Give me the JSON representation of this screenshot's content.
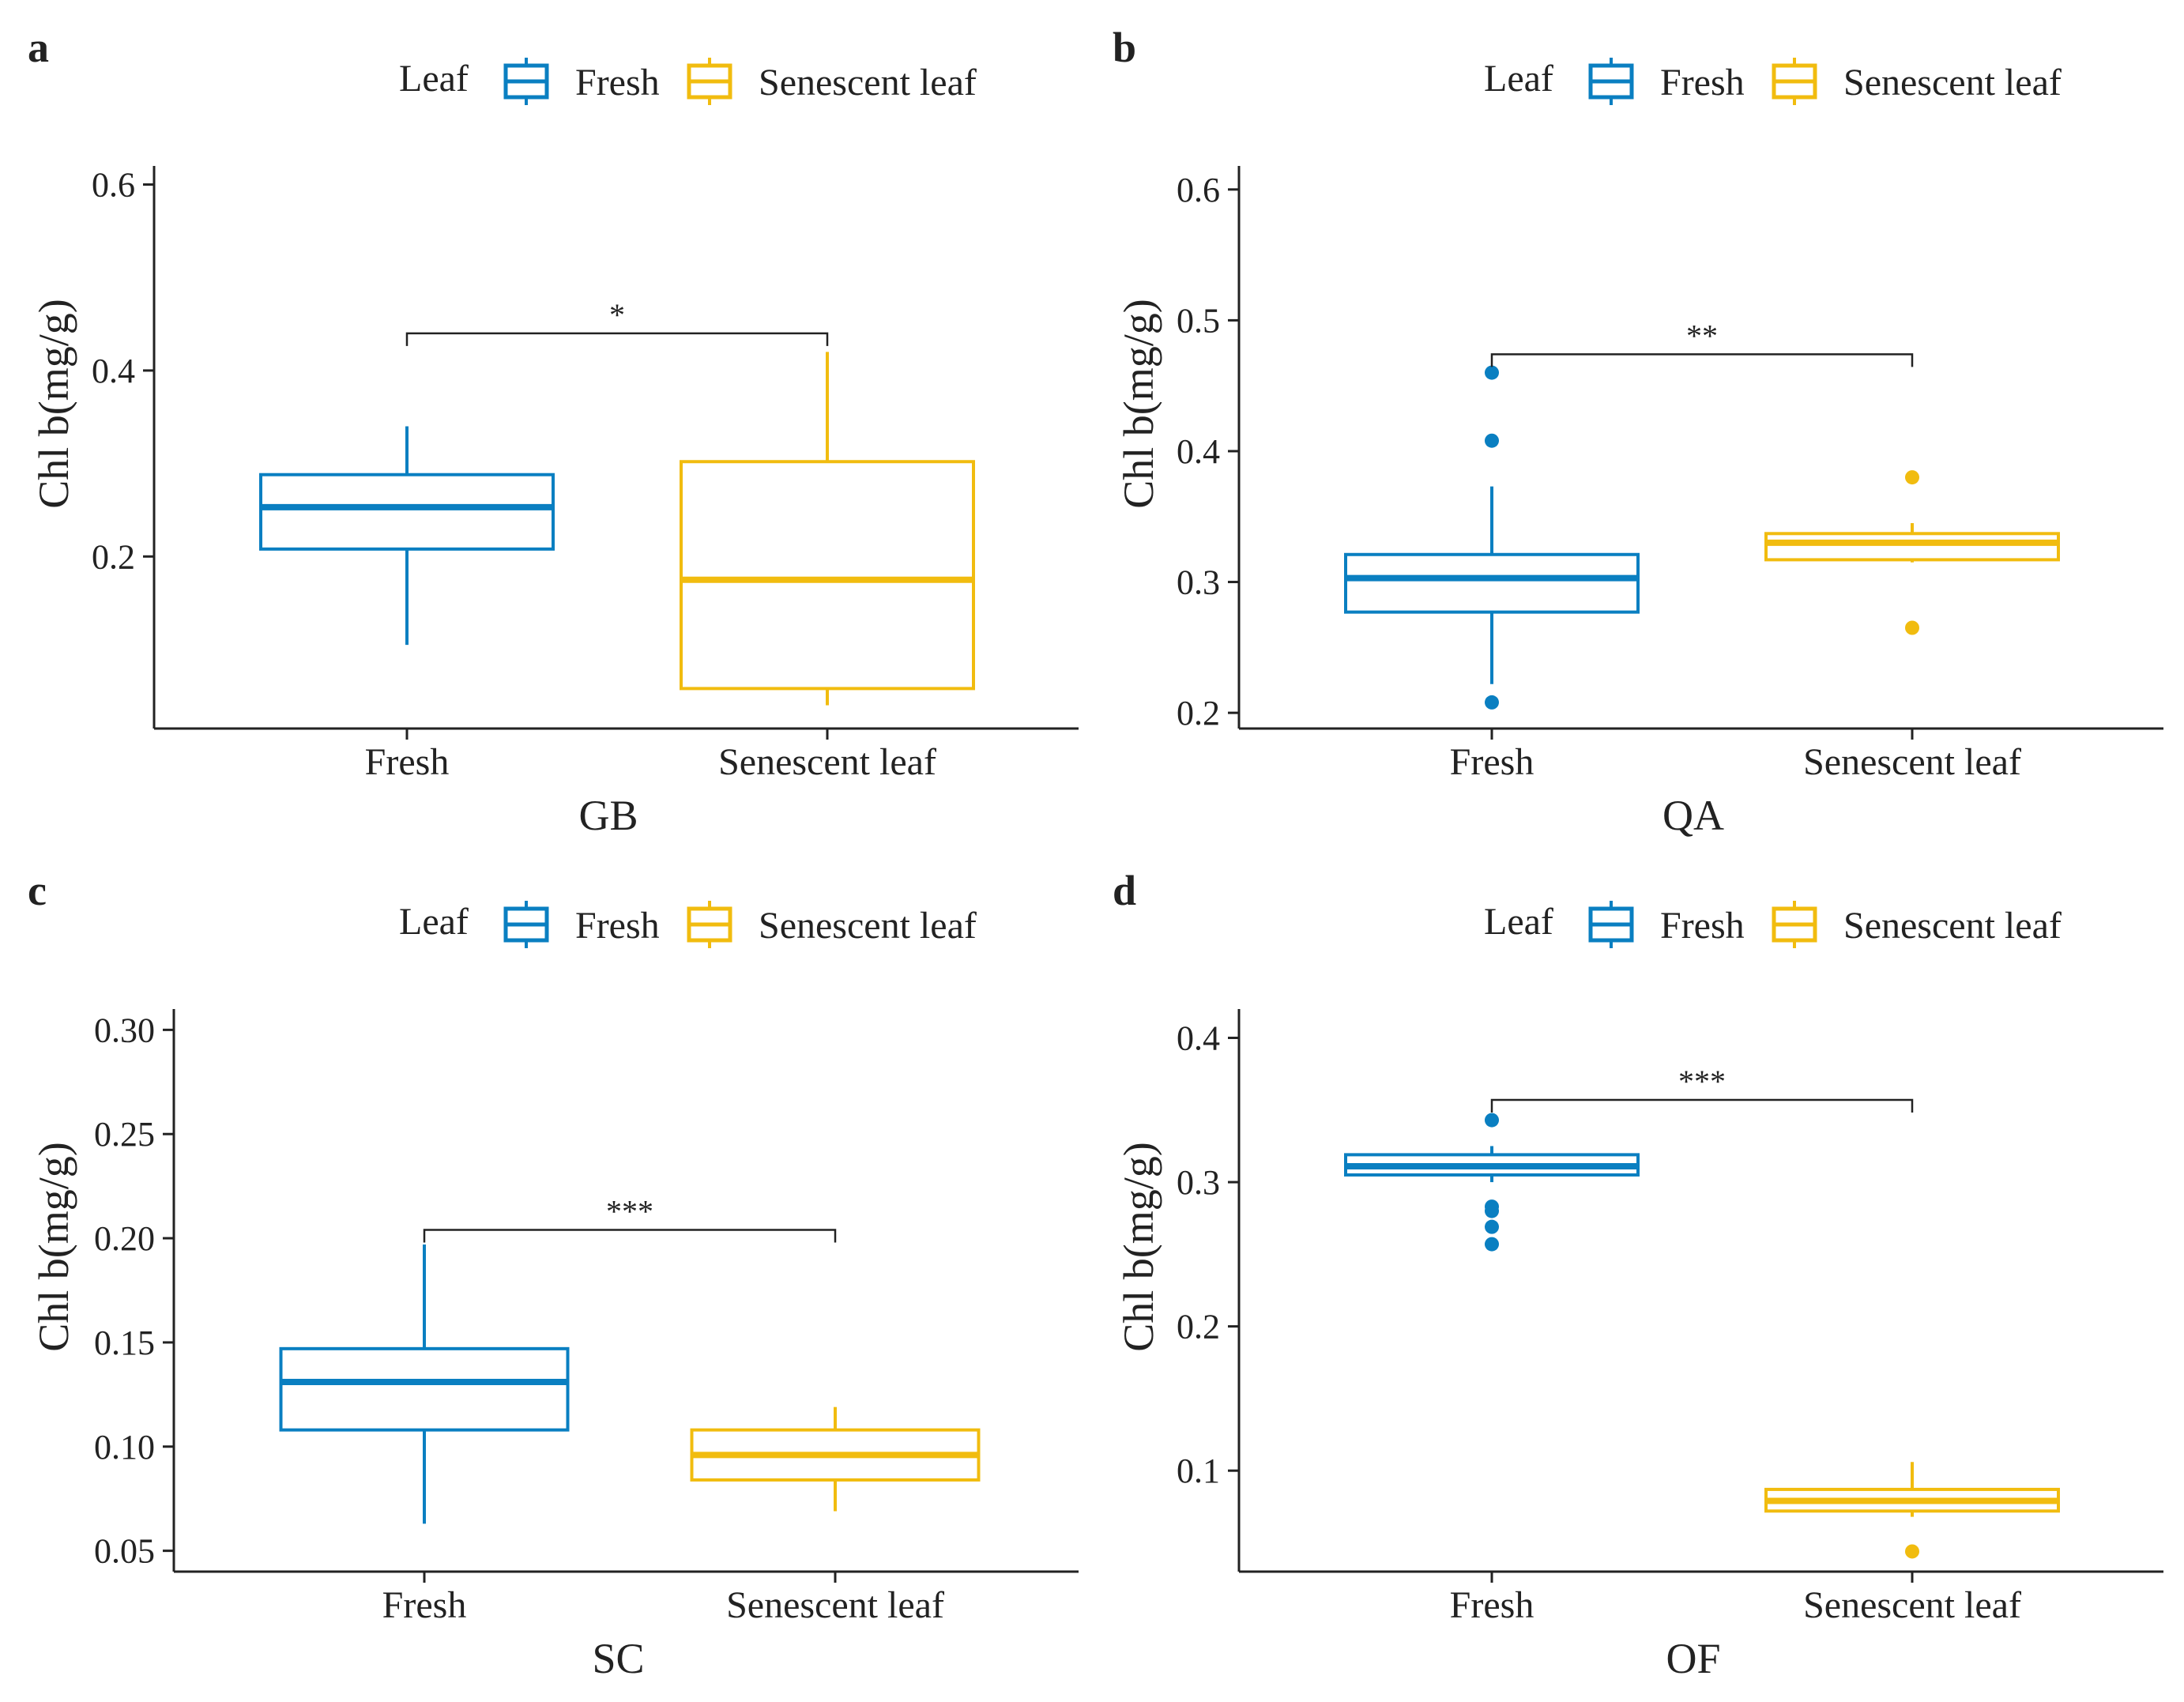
{
  "colors": {
    "fresh": "#0a7fc1",
    "senescent": "#f1bc0f",
    "axis": "#222222"
  },
  "chart_data": [
    {
      "panel": "a",
      "type": "box",
      "xlabel": "GB",
      "ylabel": "Chl b(mg/g)",
      "ylim": [
        0.015,
        0.62
      ],
      "yticks": [
        0.2,
        0.4,
        0.6
      ],
      "ytick_labels": [
        "0.2",
        "0.4",
        "0.6"
      ],
      "categories": [
        "Fresh",
        "Senescent leaf"
      ],
      "legend": {
        "title": "Leaf",
        "entries": [
          "Fresh",
          "Senescent leaf"
        ]
      },
      "significance": {
        "label": "*",
        "y": 0.44
      },
      "boxes": [
        {
          "name": "Fresh",
          "color_key": "fresh",
          "lower_whisker": 0.105,
          "q1": 0.208,
          "median": 0.253,
          "q3": 0.288,
          "upper_whisker": 0.34,
          "outliers": []
        },
        {
          "name": "Senescent leaf",
          "color_key": "senescent",
          "lower_whisker": 0.04,
          "q1": 0.058,
          "median": 0.175,
          "q3": 0.302,
          "upper_whisker": 0.42,
          "outliers": []
        }
      ]
    },
    {
      "panel": "b",
      "type": "box",
      "xlabel": "QA",
      "ylabel": "Chl b(mg/g)",
      "ylim": [
        0.188,
        0.618
      ],
      "yticks": [
        0.2,
        0.3,
        0.4,
        0.5,
        0.6
      ],
      "ytick_labels": [
        "0.2",
        "0.3",
        "0.4",
        "0.5",
        "0.6"
      ],
      "categories": [
        "Fresh",
        "Senescent leaf"
      ],
      "legend": {
        "title": "Leaf",
        "entries": [
          "Fresh",
          "Senescent leaf"
        ]
      },
      "significance": {
        "label": "**",
        "y": 0.474
      },
      "boxes": [
        {
          "name": "Fresh",
          "color_key": "fresh",
          "lower_whisker": 0.222,
          "q1": 0.277,
          "median": 0.303,
          "q3": 0.321,
          "upper_whisker": 0.373,
          "outliers": [
            0.208,
            0.408,
            0.46
          ]
        },
        {
          "name": "Senescent leaf",
          "color_key": "senescent",
          "lower_whisker": 0.315,
          "q1": 0.317,
          "median": 0.33,
          "q3": 0.337,
          "upper_whisker": 0.345,
          "outliers": [
            0.265,
            0.38
          ]
        }
      ]
    },
    {
      "panel": "c",
      "type": "box",
      "xlabel": "SC",
      "ylabel": "Chl b(mg/g)",
      "ylim": [
        0.04,
        0.31
      ],
      "yticks": [
        0.05,
        0.1,
        0.15,
        0.2,
        0.25,
        0.3
      ],
      "ytick_labels": [
        "0.05",
        "0.10",
        "0.15",
        "0.20",
        "0.25",
        "0.30"
      ],
      "categories": [
        "Fresh",
        "Senescent leaf"
      ],
      "legend": {
        "title": "Leaf",
        "entries": [
          "Fresh",
          "Senescent leaf"
        ]
      },
      "significance": {
        "label": "***",
        "y": 0.204
      },
      "boxes": [
        {
          "name": "Fresh",
          "color_key": "fresh",
          "lower_whisker": 0.063,
          "q1": 0.108,
          "median": 0.131,
          "q3": 0.147,
          "upper_whisker": 0.197,
          "outliers": []
        },
        {
          "name": "Senescent leaf",
          "color_key": "senescent",
          "lower_whisker": 0.069,
          "q1": 0.084,
          "median": 0.096,
          "q3": 0.108,
          "upper_whisker": 0.119,
          "outliers": []
        }
      ]
    },
    {
      "panel": "d",
      "type": "box",
      "xlabel": "OF",
      "ylabel": "Chl b(mg/g)",
      "ylim": [
        0.03,
        0.42
      ],
      "yticks": [
        0.1,
        0.2,
        0.3,
        0.4
      ],
      "ytick_labels": [
        "0.1",
        "0.2",
        "0.3",
        "0.4"
      ],
      "categories": [
        "Fresh",
        "Senescent leaf"
      ],
      "legend": {
        "title": "Leaf",
        "entries": [
          "Fresh",
          "Senescent leaf"
        ]
      },
      "significance": {
        "label": "***",
        "y": 0.357
      },
      "boxes": [
        {
          "name": "Fresh",
          "color_key": "fresh",
          "lower_whisker": 0.3,
          "q1": 0.305,
          "median": 0.311,
          "q3": 0.319,
          "upper_whisker": 0.325,
          "outliers": [
            0.257,
            0.269,
            0.28,
            0.283,
            0.343
          ]
        },
        {
          "name": "Senescent leaf",
          "color_key": "senescent",
          "lower_whisker": 0.068,
          "q1": 0.072,
          "median": 0.079,
          "q3": 0.087,
          "upper_whisker": 0.106,
          "outliers": [
            0.044
          ]
        }
      ]
    }
  ]
}
